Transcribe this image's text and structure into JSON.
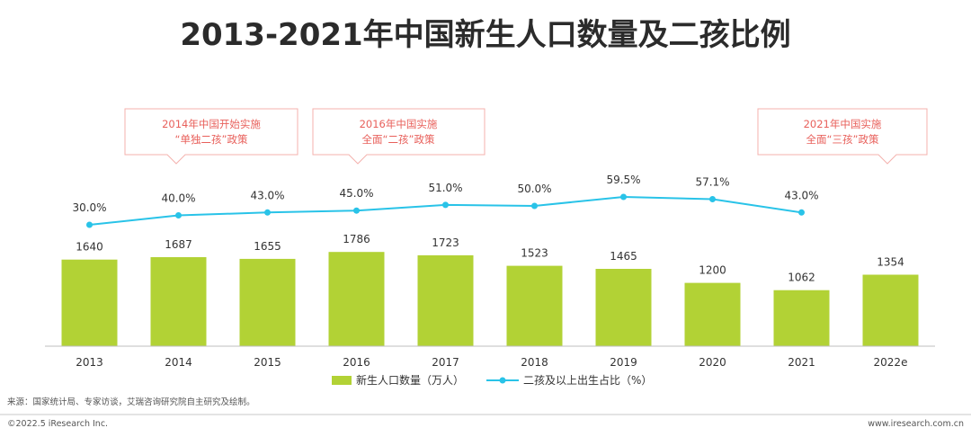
{
  "title": "2013-2021年中国新生人口数量及二孩比例",
  "colors": {
    "bar": "#b2d235",
    "line": "#29c3e8",
    "callout": "#e8605b",
    "callout_border": "#f4b1ad",
    "axis": "#bfbfbf",
    "title": "#2b2b2b"
  },
  "callouts": [
    {
      "line1": "2014年中国开始实施",
      "line2": "“单独二孩”政策"
    },
    {
      "line1": "2016年中国实施",
      "line2": "全面“二孩”政策"
    },
    {
      "line1": "2021年中国实施",
      "line2": "全面“三孩”政策"
    }
  ],
  "chart_data": {
    "type": "bar",
    "title": "2013-2021年中国新生人口数量及二孩比例",
    "categories": [
      "2013",
      "2014",
      "2015",
      "2016",
      "2017",
      "2018",
      "2019",
      "2020",
      "2021",
      "2022e"
    ],
    "series": [
      {
        "name": "新生人口数量（万人）",
        "type": "bar",
        "values": [
          1640,
          1687,
          1655,
          1786,
          1723,
          1523,
          1465,
          1200,
          1062,
          1354
        ],
        "labels": [
          "1640",
          "1687",
          "1655",
          "1786",
          "1723",
          "1523",
          "1465",
          "1200",
          "1062",
          "1354"
        ]
      },
      {
        "name": "二孩及以上出生占比（%）",
        "type": "line",
        "values": [
          30.0,
          40.0,
          43.0,
          45.0,
          51.0,
          50.0,
          59.5,
          57.1,
          43.0,
          null
        ],
        "labels": [
          "30.0%",
          "40.0%",
          "43.0%",
          "45.0%",
          "51.0%",
          "50.0%",
          "59.5%",
          "57.1%",
          "43.0%",
          ""
        ]
      }
    ],
    "xlabel": "",
    "ylabel": "",
    "grid": false,
    "legend": "bottom-center"
  },
  "legend": {
    "bar_label": "新生人口数量（万人）",
    "line_label": "二孩及以上出生占比（%）"
  },
  "footer": {
    "source": "来源：国家统计局、专家访谈，艾瑞咨询研究院自主研究及绘制。",
    "copyright": "©2022.5 iResearch Inc.",
    "website": "www.iresearch.com.cn"
  }
}
